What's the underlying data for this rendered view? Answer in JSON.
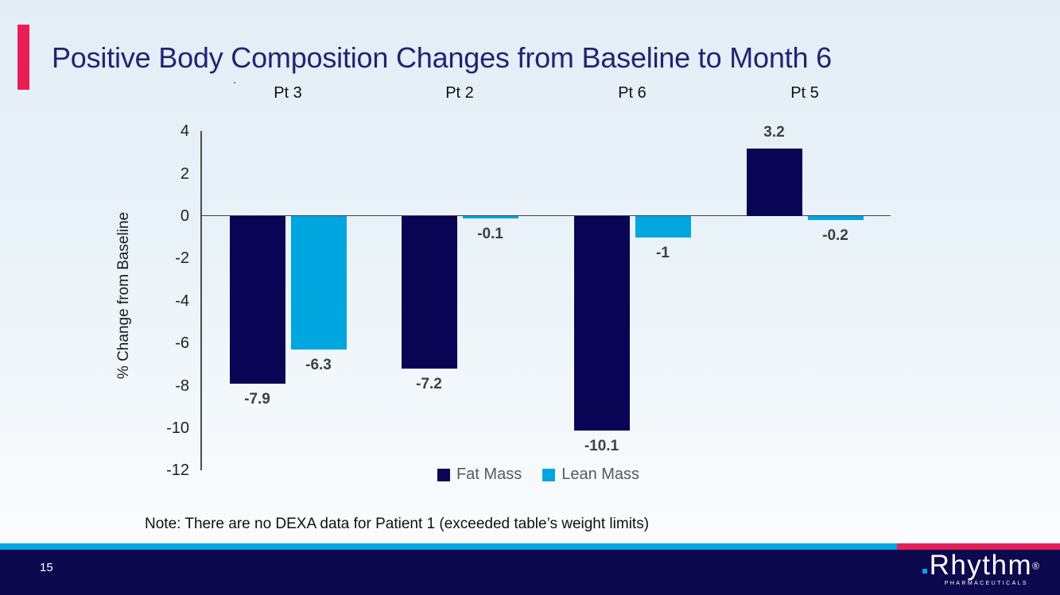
{
  "slide": {
    "title": "Positive Body Composition Changes from Baseline to Month 6",
    "stray_dot": ".",
    "note": "Note: There are no DEXA data for Patient 1 (exceeded table’s weight limits)",
    "page_number": "15",
    "logo": {
      "name": "Rhythm",
      "reg": "®",
      "sub": "PHARMACEUTICALS"
    },
    "colors": {
      "accent_pink": "#e81f56",
      "strip_pink": "#e3205c",
      "brand_cyan": "#00a6e0",
      "bar_navy": "#0a0455",
      "footer_navy": "#0d094e",
      "title_blue": "#1f2472",
      "background_blue": "#e9f2f8"
    }
  },
  "chart_data": {
    "type": "bar",
    "categories": [
      "Pt 3",
      "Pt 2",
      "Pt 6",
      "Pt 5"
    ],
    "series": [
      {
        "name": "Fat Mass",
        "color": "#0a0455",
        "values": [
          -7.9,
          -7.2,
          -10.1,
          3.2
        ]
      },
      {
        "name": "Lean Mass",
        "color": "#00a6e0",
        "values": [
          -6.3,
          -0.1,
          -1.0,
          -0.2
        ]
      }
    ],
    "value_labels": [
      [
        "-7.9",
        "-7.2",
        "-10.1",
        "3.2"
      ],
      [
        "-6.3",
        "-0.1",
        "-1",
        "-0.2"
      ]
    ],
    "title": "",
    "xlabel": "",
    "ylabel": "% Change from Baseline",
    "ylim": [
      -12,
      4
    ],
    "yticks": [
      4,
      2,
      0,
      -2,
      -4,
      -6,
      -8,
      -10,
      -12
    ],
    "grid": false,
    "legend": [
      "Fat Mass",
      "Lean Mass"
    ],
    "legend_position": "bottom"
  }
}
